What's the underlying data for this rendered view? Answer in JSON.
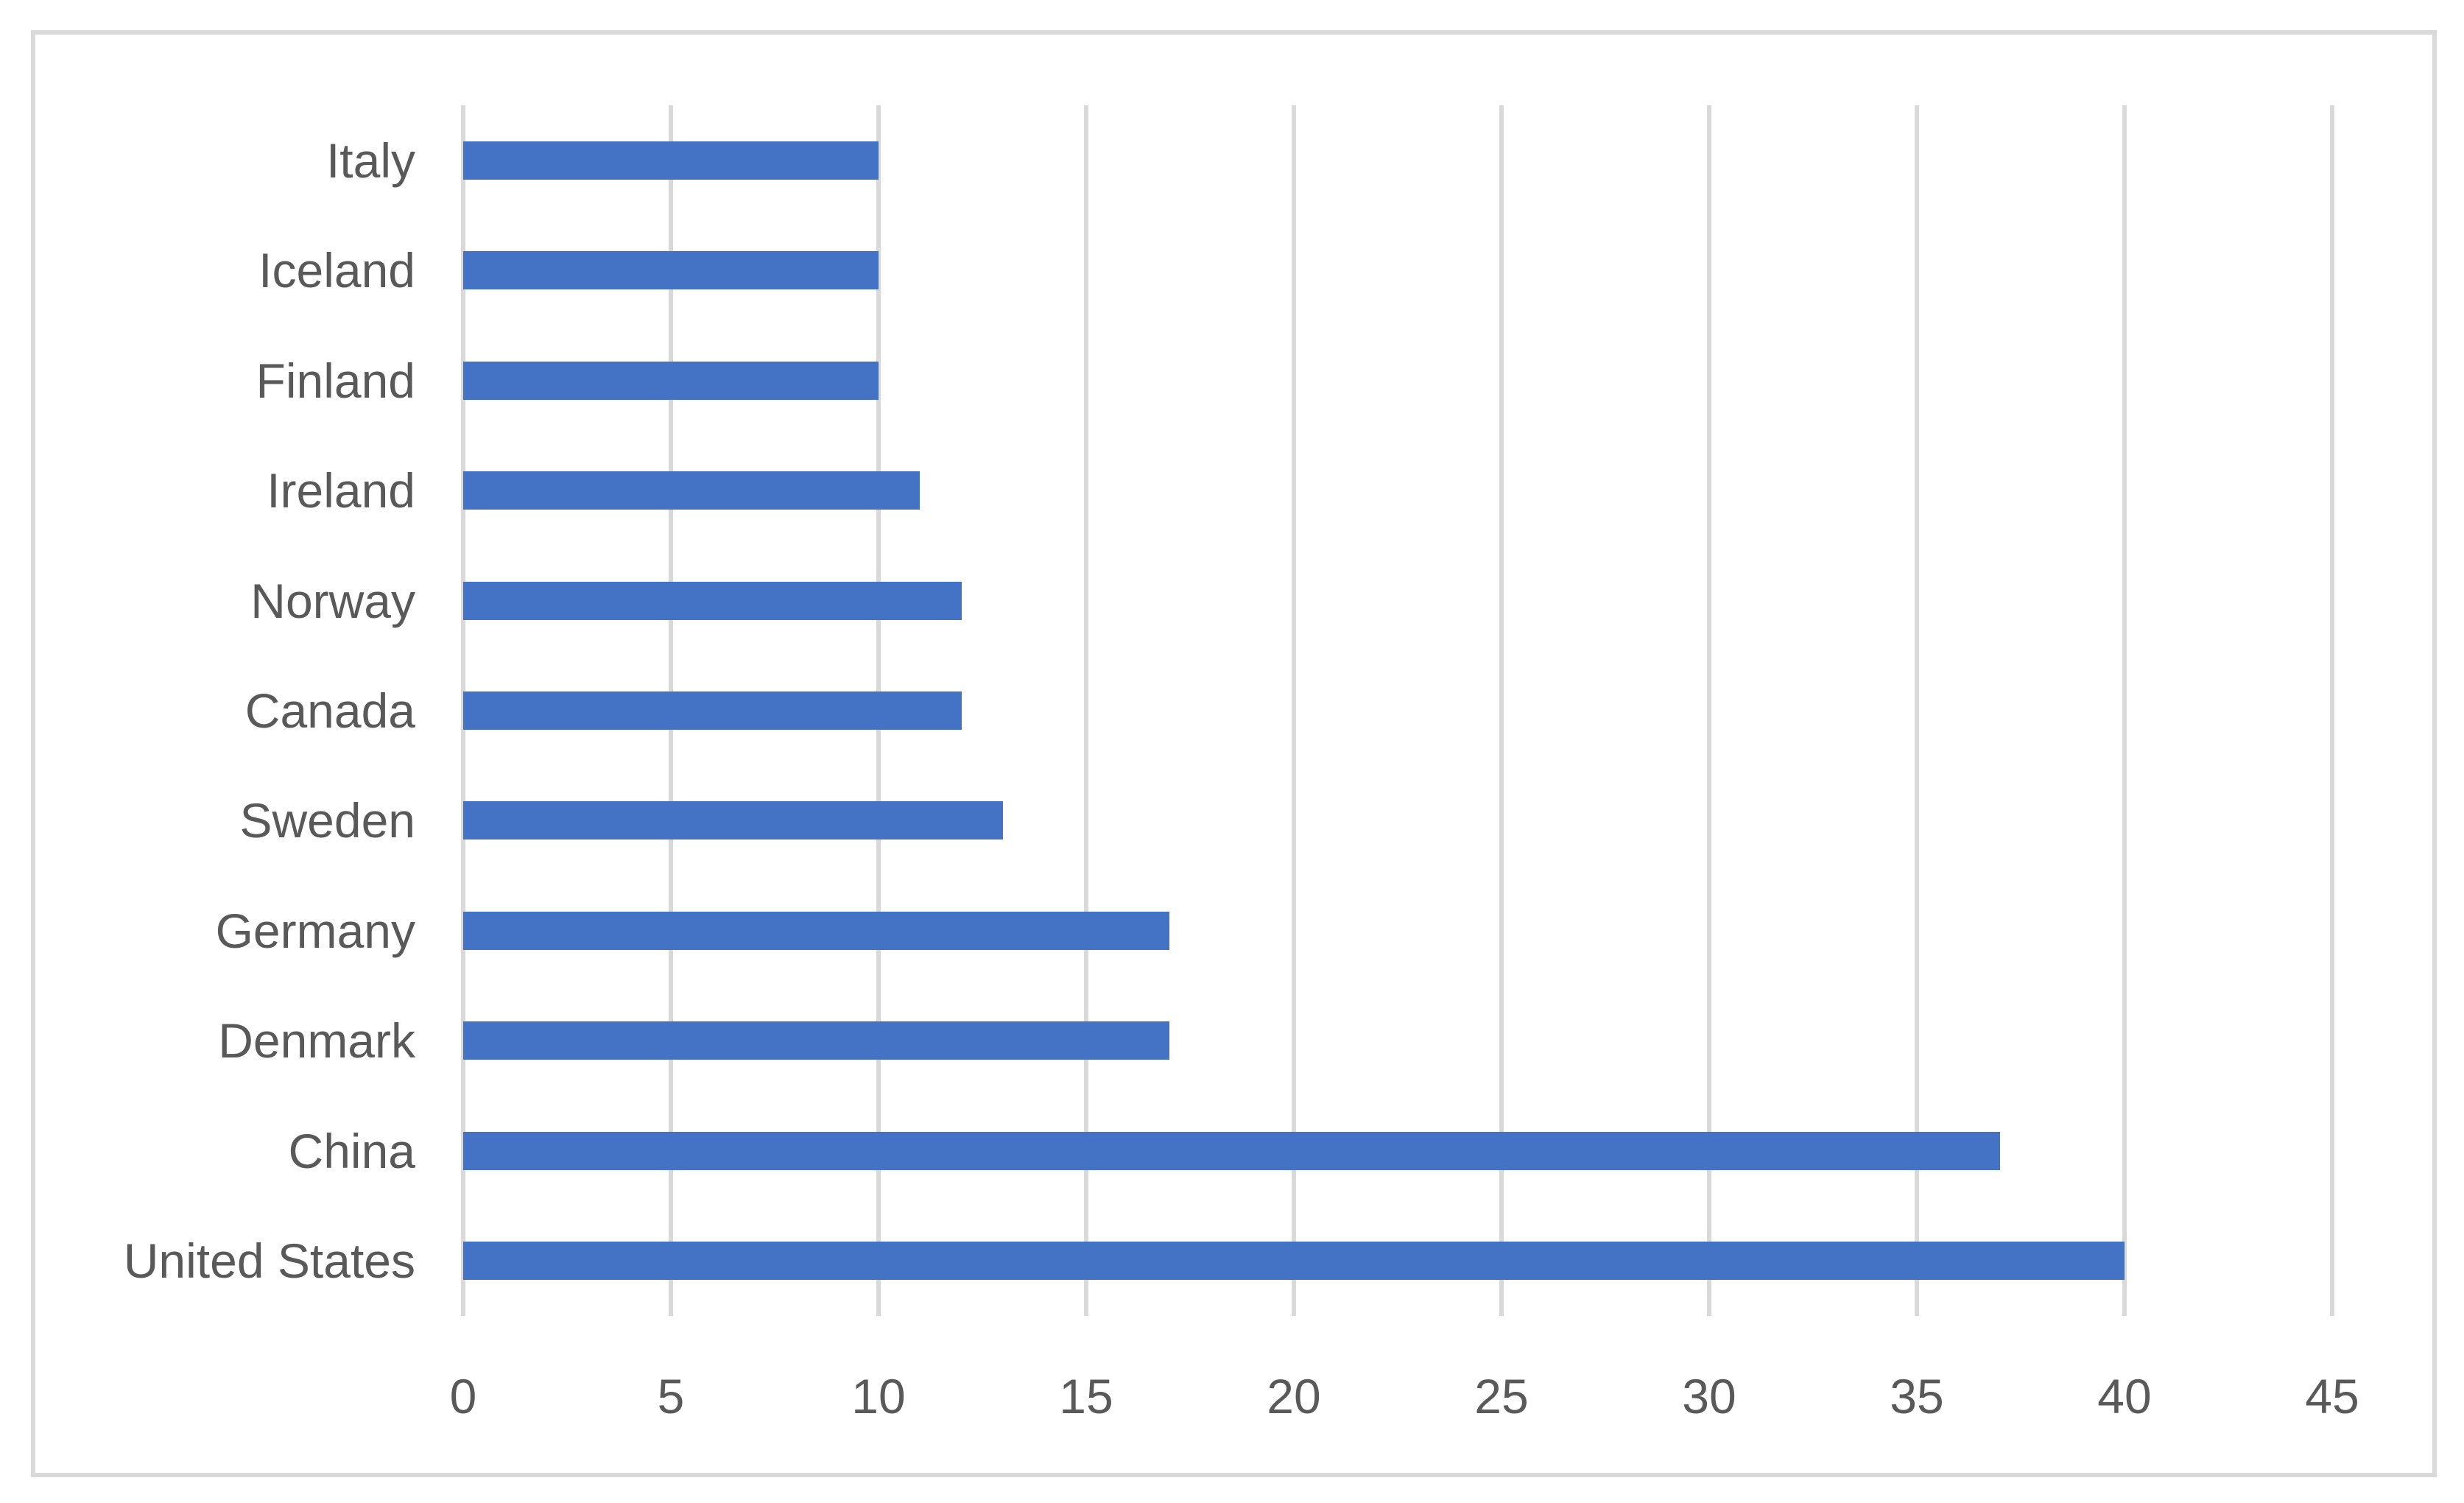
{
  "chart_data": {
    "type": "bar",
    "orientation": "horizontal",
    "title": "",
    "xlabel": "",
    "ylabel": "",
    "categories_order": "top-to-bottom",
    "categories": [
      "Italy",
      "Iceland",
      "Finland",
      "Ireland",
      "Norway",
      "Canada",
      "Sweden",
      "Germany",
      "Denmark",
      "China",
      "United States"
    ],
    "values": [
      10,
      10,
      10,
      11,
      12,
      12,
      13,
      17,
      17,
      37,
      40
    ],
    "xlim": [
      0,
      45
    ],
    "x_ticks": [
      "0",
      "5",
      "10",
      "15",
      "20",
      "25",
      "30",
      "35",
      "40",
      "45"
    ],
    "grid": true,
    "legend": false,
    "colors": {
      "bar": "#4472C4",
      "gridline": "#D9D9D9",
      "frame_border": "#D9D9D9",
      "axis_text": "#595959"
    }
  }
}
